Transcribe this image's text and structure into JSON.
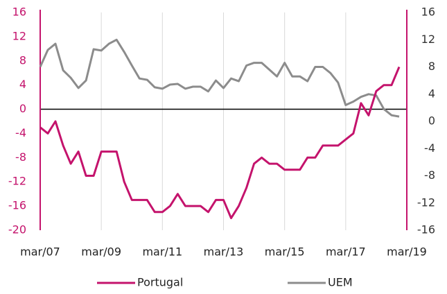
{
  "chart_data": {
    "type": "line",
    "categories": [
      "mar/07",
      null,
      null,
      null,
      null,
      null,
      null,
      null,
      "mar/09",
      null,
      null,
      null,
      null,
      null,
      null,
      null,
      "mar/11",
      null,
      null,
      null,
      null,
      null,
      null,
      null,
      "mar/13",
      null,
      null,
      null,
      null,
      null,
      null,
      null,
      "mar/15",
      null,
      null,
      null,
      null,
      null,
      null,
      null,
      "mar/17",
      null,
      null,
      null,
      null,
      null,
      null,
      null,
      "mar/19"
    ],
    "series": [
      {
        "name": "Portugal",
        "color": "#c4136c",
        "values": [
          -3,
          -4,
          -2,
          -6,
          -9,
          -7,
          -11,
          -11,
          -7,
          -7,
          -7,
          -12,
          -15,
          -15,
          -15,
          -17,
          -17,
          -16,
          -14,
          -16,
          -16,
          -16,
          -17,
          -15,
          -15,
          -18,
          -16,
          -13,
          -9,
          -8,
          -9,
          -9,
          -10,
          -10,
          -10,
          -8,
          -8,
          -6,
          -6,
          -6,
          -5,
          -4,
          1,
          -1,
          3,
          4,
          4,
          7,
          null
        ]
      },
      {
        "name": "UEM",
        "color": "#8c8c8c",
        "axis": "y2",
        "values": [
          8,
          10.5,
          11.4,
          7.5,
          6.4,
          4.9,
          6,
          10.6,
          10.4,
          11.4,
          12,
          10.2,
          8.2,
          6.3,
          6.1,
          5,
          4.8,
          5.4,
          5.5,
          4.8,
          5.1,
          5.1,
          4.4,
          6,
          4.9,
          6.3,
          5.9,
          8.2,
          8.6,
          8.6,
          7.6,
          6.6,
          8.6,
          6.6,
          6.6,
          5.9,
          8,
          8,
          7.1,
          5.7,
          2.4,
          2.9,
          3.6,
          4,
          3.8,
          1.8,
          0.9,
          0.7,
          null
        ]
      }
    ],
    "ylim": [
      -20,
      16
    ],
    "yticks": [
      -20,
      -16,
      -12,
      -8,
      -4,
      0,
      4,
      8,
      12,
      16
    ],
    "y2lim": [
      -16,
      16
    ],
    "y2ticks": [
      -16,
      -12,
      -8,
      -4,
      0,
      4,
      8,
      12,
      16
    ],
    "grid": true,
    "legend": "bottom"
  }
}
